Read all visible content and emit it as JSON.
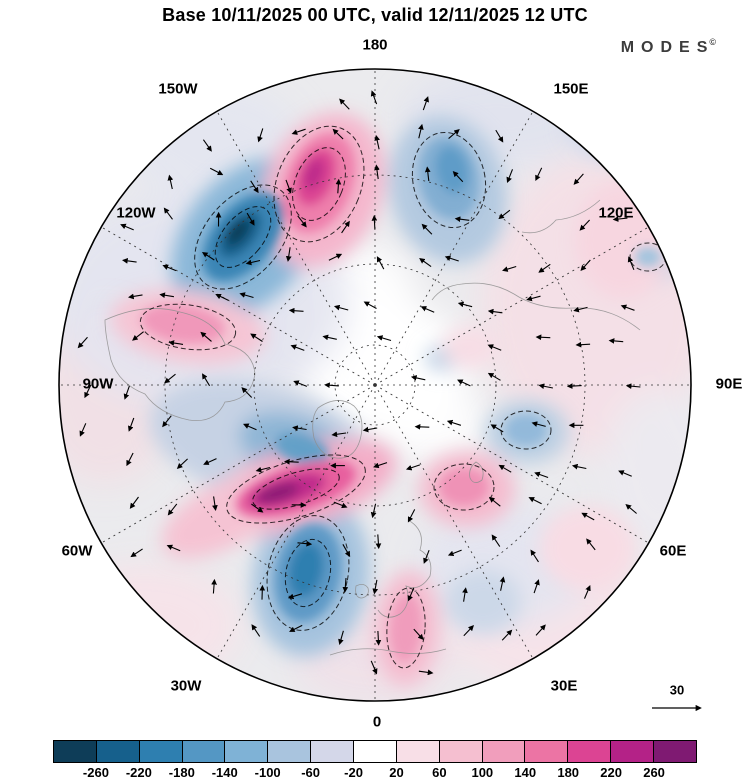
{
  "header": {
    "title": "Base 10/11/2025 00 UTC, valid 12/11/2025 12 UTC",
    "brand": "MODES",
    "brand_mark": "©"
  },
  "map": {
    "longitude_labels": [
      "180",
      "150W",
      "150E",
      "120W",
      "120E",
      "90W",
      "90E",
      "60W",
      "60E",
      "30W",
      "30E",
      "0"
    ],
    "reference_vector_label": "30"
  },
  "chart_data": {
    "type": "heatmap",
    "subtype": "filled-contour-anomaly-map-with-vectors",
    "projection": "north-polar-stereographic",
    "title": "Base 10/11/2025 00 UTC, valid 12/11/2025 12 UTC",
    "base_time": "10/11/2025 00 UTC",
    "valid_time": "12/11/2025 12 UTC",
    "overlay": "flow vectors (arrows), dashed contour lines, dashed graticule every 30 degrees longitude",
    "reference_vector": 30,
    "contour_interval": 40,
    "levels": [
      -260,
      -220,
      -180,
      -140,
      -100,
      -60,
      -20,
      20,
      60,
      100,
      140,
      180,
      220,
      260
    ],
    "longitude_labels": [
      "180",
      "150W",
      "150E",
      "120W",
      "120E",
      "90W",
      "90E",
      "60W",
      "60E",
      "30W",
      "30E",
      "0"
    ],
    "colorbar": {
      "orientation": "horizontal",
      "position": "bottom",
      "tick_labels": [
        "-260",
        "-220",
        "-180",
        "-140",
        "-100",
        "-60",
        "-20",
        "20",
        "60",
        "100",
        "140",
        "180",
        "220",
        "260"
      ],
      "cell_colors": [
        "#0e3d58",
        "#16608c",
        "#2e7fb0",
        "#5497c4",
        "#7fb2d6",
        "#a9c4de",
        "#d4d7e9",
        "#ffffff",
        "#f8dfe7",
        "#f5bfd0",
        "#f19ebc",
        "#ec74a4",
        "#dc4493",
        "#b42287",
        "#7f1a72"
      ]
    },
    "graticule": {
      "longitude_step_deg": 30,
      "style": "dashed"
    },
    "notable_centers": [
      {
        "sign": "positive",
        "strength": "strong",
        "approx_location": "top center, near 170W high latitude"
      },
      {
        "sign": "negative",
        "strength": "strong",
        "approx_location": "upper left, near 140W"
      },
      {
        "sign": "negative",
        "strength": "moderate",
        "approx_location": "upper middle right, near 170E"
      },
      {
        "sign": "positive",
        "strength": "moderate",
        "approx_location": "left, near 110W mid-latitude"
      },
      {
        "sign": "positive",
        "strength": "very strong",
        "approx_location": "lower left of center, near 60W-70W"
      },
      {
        "sign": "negative",
        "strength": "strong",
        "approx_location": "lower center, near 20W-30W"
      },
      {
        "sign": "positive",
        "strength": "moderate",
        "approx_location": "lower right of center, near 10E-20E"
      },
      {
        "sign": "negative",
        "strength": "moderate",
        "approx_location": "center right, near 90E"
      }
    ]
  }
}
